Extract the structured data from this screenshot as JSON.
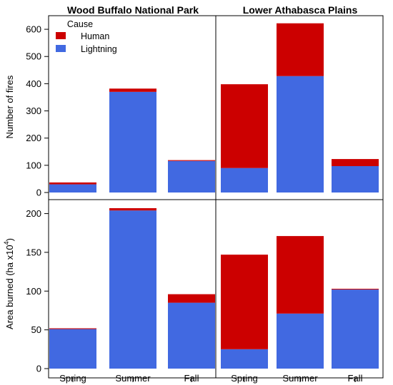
{
  "chart_data": {
    "type": "bar",
    "stacked": true,
    "grid": false,
    "legend": {
      "title": "Cause",
      "placement": "top-left",
      "entries": [
        {
          "name": "Human",
          "color": "#cc0000"
        },
        {
          "name": "Lightning",
          "color": "#4169e1"
        }
      ]
    },
    "column_titles": [
      "Wood Buffalo National Park",
      "Lower Athabasca Plains"
    ],
    "categories": [
      "Spring",
      "Summer",
      "Fall"
    ],
    "rows": [
      {
        "ylabel": "Number of fires",
        "ylim": [
          0,
          650
        ],
        "yticks": [
          0,
          100,
          200,
          300,
          400,
          500,
          600
        ],
        "panels": [
          {
            "region": "Wood Buffalo National Park",
            "lightning": [
              30,
              370,
              116
            ],
            "human": [
              7,
              12,
              3
            ]
          },
          {
            "region": "Lower Athabasca Plains",
            "lightning": [
              90,
              428,
              97
            ],
            "human": [
              308,
              194,
              26
            ]
          }
        ]
      },
      {
        "ylabel": "Area burned (ha x10",
        "ylabel_sup": "4",
        "ylabel_end": ")",
        "ylim": [
          0,
          218
        ],
        "yticks": [
          0,
          50,
          100,
          150,
          200
        ],
        "panels": [
          {
            "region": "Wood Buffalo National Park",
            "lightning": [
              51,
              204,
              85
            ],
            "human": [
              1,
              3,
              11
            ]
          },
          {
            "region": "Lower Athabasca Plains",
            "lightning": [
              25,
              71,
              102
            ],
            "human": [
              122,
              100,
              1
            ]
          }
        ]
      }
    ]
  }
}
